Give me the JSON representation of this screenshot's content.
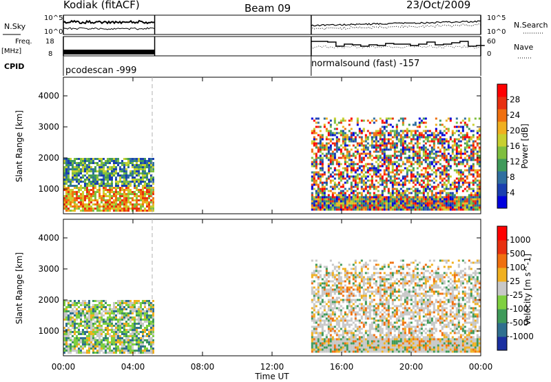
{
  "header": {
    "station": "Kodiak (fitACF)",
    "beam": "Beam 09",
    "date": "23/Oct/2009"
  },
  "params": {
    "nsky_label": "N.Sky",
    "nsearch_label": "N.Search",
    "freq_label_1": "Freq.",
    "freq_label_2": "[MHz]",
    "nave_label": "Nave",
    "cpid_label": "CPID",
    "noise_left_ticks": [
      "10^5",
      "10^0"
    ],
    "noise_right_ticks": [
      "10^5",
      "10^0"
    ],
    "freq_ticks": [
      "18",
      "8"
    ],
    "nave_ticks": [
      "60",
      "0"
    ],
    "cpid_segments": [
      {
        "label": "pcodescan -999",
        "start_hour": 0.0,
        "end_hour": 5.25
      },
      {
        "label": "normalsound (fast) -157",
        "start_hour": 14.25,
        "end_hour": 24.0
      }
    ],
    "gap_hours": [
      5.25,
      14.25
    ]
  },
  "chart_data": [
    {
      "type": "heatmap",
      "title": "",
      "xlabel": "",
      "ylabel": "Slant Range [km]",
      "xlim_hours": [
        0,
        24
      ],
      "ylim_km": [
        200,
        4600
      ],
      "yticks": [
        "1000",
        "2000",
        "3000",
        "4000"
      ],
      "colorbar": {
        "label": "Power [dB]",
        "ticks": [
          "28",
          "24",
          "20",
          "16",
          "12",
          "8",
          "4"
        ],
        "colors": [
          "#0000dd",
          "#1a3fb0",
          "#2f6fa0",
          "#3f9a5a",
          "#7fbf3f",
          "#c8d030",
          "#f0b020",
          "#f07010",
          "#e83010",
          "#ff0000"
        ]
      },
      "regions": [
        {
          "start_hour": 0.0,
          "end_hour": 5.25,
          "range_km": [
            300,
            2000
          ],
          "dominant": "12-28 dB"
        },
        {
          "start_hour": 14.25,
          "end_hour": 24.0,
          "range_km": [
            300,
            3300
          ],
          "dominant": "4-28 dB"
        }
      ]
    },
    {
      "type": "heatmap",
      "title": "",
      "xlabel": "Time UT",
      "ylabel": "Slant Range [km]",
      "xlim_hours": [
        0,
        24
      ],
      "ylim_km": [
        200,
        4600
      ],
      "yticks": [
        "1000",
        "2000",
        "3000",
        "4000"
      ],
      "xticks": [
        "00:00",
        "04:00",
        "08:00",
        "12:00",
        "16:00",
        "20:00",
        "00:00"
      ],
      "colorbar": {
        "label": "Velocity [m s^-1]",
        "ticks": [
          "1000",
          "500",
          "100",
          "25",
          "-25",
          "-100",
          "-500",
          "-1000"
        ],
        "colors": [
          "#1a2fa0",
          "#2f6f8f",
          "#3f9a5a",
          "#7fd040",
          "#c8c8c8",
          "#f0b020",
          "#f07010",
          "#e83010",
          "#ff0000"
        ]
      },
      "regions": [
        {
          "start_hour": 0.0,
          "end_hour": 5.25,
          "range_km": [
            300,
            2000
          ],
          "dominant": "mixed"
        },
        {
          "start_hour": 14.25,
          "end_hour": 24.0,
          "range_km": [
            300,
            3300
          ],
          "dominant": "ground scatter"
        }
      ]
    }
  ]
}
